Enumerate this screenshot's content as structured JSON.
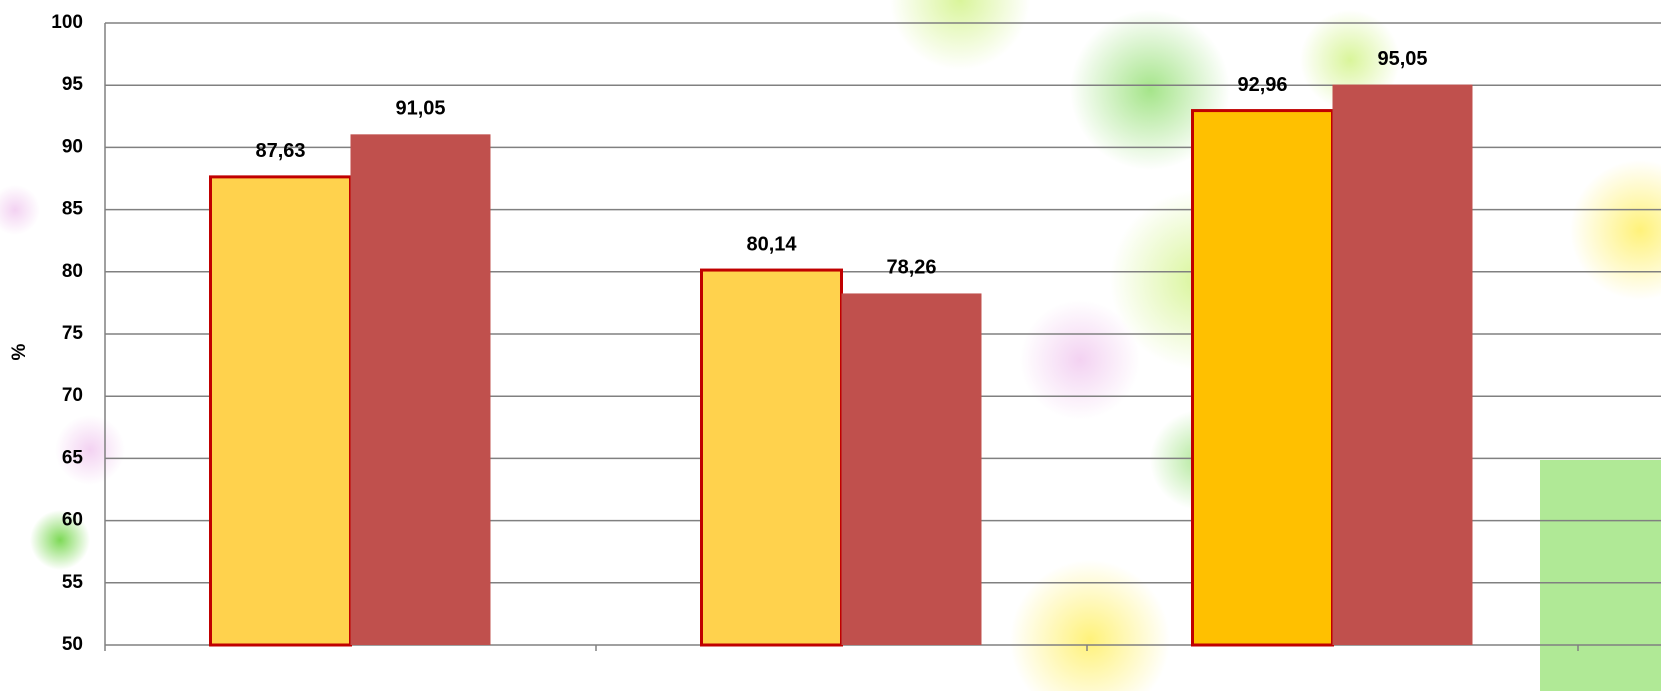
{
  "chart_data": {
    "type": "bar",
    "y_label": "%",
    "categories": [
      null,
      null,
      null
    ],
    "series": [
      {
        "colors": [
          "#ffd24d",
          "#ffd24d",
          "#ffc000"
        ],
        "border": "#c00000",
        "values": [
          87.63,
          80.14,
          92.96
        ],
        "value_labels": [
          "87,63",
          "80,14",
          "92,96"
        ]
      },
      {
        "colors": [
          "#c0504d",
          "#c0504d",
          "#c0504d"
        ],
        "values": [
          91.05,
          78.26,
          95.05
        ],
        "value_labels": [
          "91,05",
          "78,26",
          "95,05"
        ]
      }
    ],
    "ylim": [
      50,
      100
    ],
    "yticks": [
      50,
      55,
      60,
      65,
      70,
      75,
      80,
      85,
      90,
      95,
      100
    ],
    "grid": true
  }
}
